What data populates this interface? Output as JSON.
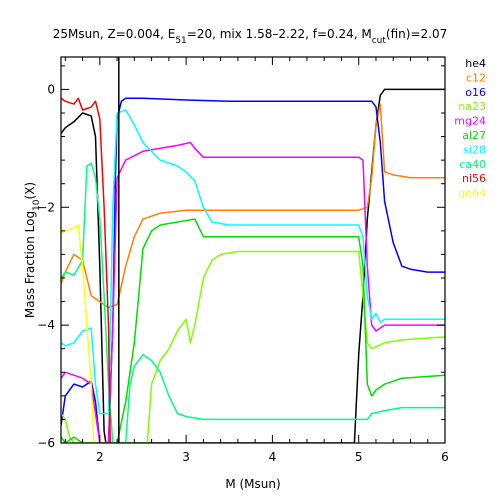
{
  "chart_data": {
    "type": "line",
    "title": {
      "prefix": "25Msun, Z=0.004, E",
      "e_sub": "51",
      "middle": "=20, mix 1.58–2.22, f=0.24, M",
      "m_sub": "cut",
      "suffix": "(fin)=2.07"
    },
    "xlabel": "M (Msun)",
    "ylabel": {
      "main": "Mass Fraction Log",
      "sub": "10",
      "suffix": "(X)"
    },
    "xlim": [
      1.55,
      6.0
    ],
    "ylim": [
      -6.0,
      0.55
    ],
    "x_ticks": [
      {
        "value": 2,
        "label": "2"
      },
      {
        "value": 3,
        "label": "3"
      },
      {
        "value": 4,
        "label": "4"
      },
      {
        "value": 5,
        "label": "5"
      },
      {
        "value": 6,
        "label": "6"
      }
    ],
    "y_ticks": [
      {
        "value": 0,
        "label": "0"
      },
      {
        "value": -2,
        "label": "−2"
      },
      {
        "value": -4,
        "label": "−4"
      },
      {
        "value": -6,
        "label": "−6"
      }
    ],
    "grid": false,
    "legend_position": "right",
    "mcut_marker_x": 2.22,
    "series": [
      {
        "name": "he4",
        "color": "#000000",
        "points": [
          [
            1.55,
            -0.75
          ],
          [
            1.6,
            -0.65
          ],
          [
            1.7,
            -0.55
          ],
          [
            1.8,
            -0.4
          ],
          [
            1.9,
            -0.45
          ],
          [
            1.95,
            -0.8
          ],
          [
            2.0,
            -3.0
          ],
          [
            2.05,
            -5.8
          ],
          [
            2.07,
            -6.0
          ],
          [
            4.95,
            -6.0
          ],
          [
            5.0,
            -4.5
          ],
          [
            5.05,
            -3.5
          ],
          [
            5.1,
            -2.2
          ],
          [
            5.15,
            -1.4
          ],
          [
            5.2,
            -0.6
          ],
          [
            5.25,
            -0.1
          ],
          [
            5.3,
            0.0
          ],
          [
            5.5,
            0.0
          ],
          [
            5.8,
            0.0
          ],
          [
            6.0,
            0.0
          ]
        ]
      },
      {
        "name": "c12",
        "color": "#ff8000",
        "points": [
          [
            1.55,
            -3.3
          ],
          [
            1.6,
            -3.1
          ],
          [
            1.7,
            -2.8
          ],
          [
            1.8,
            -2.9
          ],
          [
            1.9,
            -3.5
          ],
          [
            2.0,
            -3.6
          ],
          [
            2.1,
            -3.7
          ],
          [
            2.2,
            -3.65
          ],
          [
            2.3,
            -3.0
          ],
          [
            2.4,
            -2.5
          ],
          [
            2.5,
            -2.2
          ],
          [
            2.7,
            -2.1
          ],
          [
            3.0,
            -2.05
          ],
          [
            3.2,
            -2.05
          ],
          [
            3.5,
            -2.05
          ],
          [
            4.0,
            -2.05
          ],
          [
            4.5,
            -2.05
          ],
          [
            5.0,
            -2.05
          ],
          [
            5.1,
            -2.0
          ],
          [
            5.15,
            -1.5
          ],
          [
            5.2,
            -0.6
          ],
          [
            5.25,
            -0.25
          ],
          [
            5.3,
            -1.4
          ],
          [
            5.4,
            -1.45
          ],
          [
            5.6,
            -1.5
          ],
          [
            6.0,
            -1.5
          ]
        ]
      },
      {
        "name": "o16",
        "color": "#0000ff",
        "points": [
          [
            1.55,
            -5.7
          ],
          [
            1.6,
            -5.2
          ],
          [
            1.7,
            -5.0
          ],
          [
            1.8,
            -5.05
          ],
          [
            1.9,
            -4.95
          ],
          [
            1.95,
            -5.3
          ],
          [
            2.0,
            -6.0
          ],
          [
            2.1,
            -6.0
          ],
          [
            2.15,
            -4.0
          ],
          [
            2.18,
            -1.5
          ],
          [
            2.2,
            -0.5
          ],
          [
            2.25,
            -0.2
          ],
          [
            2.3,
            -0.15
          ],
          [
            2.5,
            -0.15
          ],
          [
            3.0,
            -0.18
          ],
          [
            3.5,
            -0.2
          ],
          [
            4.0,
            -0.2
          ],
          [
            4.5,
            -0.2
          ],
          [
            5.0,
            -0.2
          ],
          [
            5.15,
            -0.2
          ],
          [
            5.2,
            -0.3
          ],
          [
            5.25,
            -0.9
          ],
          [
            5.3,
            -1.9
          ],
          [
            5.4,
            -2.6
          ],
          [
            5.5,
            -3.0
          ],
          [
            5.6,
            -3.05
          ],
          [
            5.8,
            -3.1
          ],
          [
            6.0,
            -3.1
          ]
        ]
      },
      {
        "name": "na23",
        "color": "#80ff00",
        "points": [
          [
            1.55,
            -5.5
          ],
          [
            1.6,
            -5.6
          ],
          [
            1.65,
            -5.9
          ],
          [
            1.7,
            -6.0
          ],
          [
            2.55,
            -6.0
          ],
          [
            2.6,
            -5.0
          ],
          [
            2.7,
            -4.6
          ],
          [
            2.8,
            -4.4
          ],
          [
            2.9,
            -4.1
          ],
          [
            3.0,
            -3.9
          ],
          [
            3.05,
            -4.3
          ],
          [
            3.1,
            -4.0
          ],
          [
            3.2,
            -3.2
          ],
          [
            3.3,
            -2.9
          ],
          [
            3.4,
            -2.8
          ],
          [
            3.6,
            -2.75
          ],
          [
            4.0,
            -2.75
          ],
          [
            4.5,
            -2.75
          ],
          [
            5.0,
            -2.75
          ],
          [
            5.05,
            -3.5
          ],
          [
            5.1,
            -4.3
          ],
          [
            5.15,
            -4.4
          ],
          [
            5.3,
            -4.3
          ],
          [
            5.5,
            -4.25
          ],
          [
            6.0,
            -4.2
          ]
        ]
      },
      {
        "name": "mg24",
        "color": "#ff00ff",
        "points": [
          [
            1.55,
            -4.9
          ],
          [
            1.6,
            -4.8
          ],
          [
            1.7,
            -4.85
          ],
          [
            1.8,
            -4.9
          ],
          [
            1.9,
            -5.0
          ],
          [
            1.95,
            -5.5
          ],
          [
            2.0,
            -6.0
          ],
          [
            2.1,
            -6.0
          ],
          [
            2.15,
            -4.0
          ],
          [
            2.2,
            -1.5
          ],
          [
            2.3,
            -1.2
          ],
          [
            2.5,
            -1.05
          ],
          [
            2.7,
            -1.0
          ],
          [
            2.9,
            -0.95
          ],
          [
            3.05,
            -0.9
          ],
          [
            3.1,
            -1.0
          ],
          [
            3.2,
            -1.15
          ],
          [
            3.5,
            -1.15
          ],
          [
            4.0,
            -1.15
          ],
          [
            4.5,
            -1.15
          ],
          [
            5.0,
            -1.15
          ],
          [
            5.05,
            -1.2
          ],
          [
            5.1,
            -3.0
          ],
          [
            5.15,
            -4.0
          ],
          [
            5.2,
            -4.1
          ],
          [
            5.3,
            -4.0
          ],
          [
            5.5,
            -4.0
          ],
          [
            6.0,
            -4.0
          ]
        ]
      },
      {
        "name": "al27",
        "color": "#00e000",
        "points": [
          [
            1.55,
            -5.9
          ],
          [
            1.6,
            -6.0
          ],
          [
            1.7,
            -5.9
          ],
          [
            1.8,
            -6.0
          ],
          [
            2.2,
            -6.0
          ],
          [
            2.3,
            -5.3
          ],
          [
            2.4,
            -4.3
          ],
          [
            2.45,
            -3.5
          ],
          [
            2.5,
            -2.7
          ],
          [
            2.6,
            -2.4
          ],
          [
            2.7,
            -2.3
          ],
          [
            2.9,
            -2.25
          ],
          [
            3.1,
            -2.2
          ],
          [
            3.2,
            -2.5
          ],
          [
            3.5,
            -2.5
          ],
          [
            4.0,
            -2.5
          ],
          [
            4.5,
            -2.5
          ],
          [
            5.0,
            -2.5
          ],
          [
            5.05,
            -3.0
          ],
          [
            5.1,
            -5.0
          ],
          [
            5.15,
            -5.2
          ],
          [
            5.2,
            -5.1
          ],
          [
            5.3,
            -5.0
          ],
          [
            5.5,
            -4.9
          ],
          [
            6.0,
            -4.85
          ]
        ]
      },
      {
        "name": "si28",
        "color": "#00ffff",
        "points": [
          [
            1.55,
            -4.3
          ],
          [
            1.6,
            -4.35
          ],
          [
            1.7,
            -4.3
          ],
          [
            1.8,
            -4.1
          ],
          [
            1.9,
            -4.05
          ],
          [
            1.95,
            -5.0
          ],
          [
            2.0,
            -5.5
          ],
          [
            2.1,
            -5.5
          ],
          [
            2.15,
            -2.0
          ],
          [
            2.2,
            -0.4
          ],
          [
            2.3,
            -0.35
          ],
          [
            2.4,
            -0.6
          ],
          [
            2.5,
            -0.9
          ],
          [
            2.7,
            -1.2
          ],
          [
            2.9,
            -1.3
          ],
          [
            3.0,
            -1.4
          ],
          [
            3.1,
            -1.55
          ],
          [
            3.2,
            -2.0
          ],
          [
            3.3,
            -2.25
          ],
          [
            3.5,
            -2.3
          ],
          [
            4.0,
            -2.3
          ],
          [
            4.5,
            -2.3
          ],
          [
            5.0,
            -2.3
          ],
          [
            5.05,
            -2.5
          ],
          [
            5.1,
            -3.5
          ],
          [
            5.15,
            -3.9
          ],
          [
            5.2,
            -3.8
          ],
          [
            5.25,
            -3.95
          ],
          [
            5.3,
            -3.9
          ],
          [
            5.5,
            -3.9
          ],
          [
            6.0,
            -3.9
          ]
        ]
      },
      {
        "name": "ca40",
        "color": "#00ff80",
        "points": [
          [
            1.55,
            -3.2
          ],
          [
            1.6,
            -3.1
          ],
          [
            1.7,
            -3.15
          ],
          [
            1.8,
            -2.9
          ],
          [
            1.85,
            -1.3
          ],
          [
            1.9,
            -1.25
          ],
          [
            1.95,
            -1.5
          ],
          [
            2.0,
            -2.2
          ],
          [
            2.05,
            -3.5
          ],
          [
            2.1,
            -5.0
          ],
          [
            2.15,
            -6.0
          ],
          [
            2.3,
            -6.0
          ],
          [
            2.35,
            -5.0
          ],
          [
            2.4,
            -4.7
          ],
          [
            2.5,
            -4.5
          ],
          [
            2.6,
            -4.6
          ],
          [
            2.7,
            -4.8
          ],
          [
            2.8,
            -5.2
          ],
          [
            2.9,
            -5.5
          ],
          [
            3.0,
            -5.55
          ],
          [
            3.2,
            -5.6
          ],
          [
            3.5,
            -5.6
          ],
          [
            4.0,
            -5.6
          ],
          [
            4.5,
            -5.6
          ],
          [
            5.0,
            -5.6
          ],
          [
            5.1,
            -5.6
          ],
          [
            5.15,
            -5.5
          ],
          [
            5.3,
            -5.45
          ],
          [
            5.5,
            -5.4
          ],
          [
            6.0,
            -5.4
          ]
        ]
      },
      {
        "name": "ni56",
        "color": "#ff0000",
        "points": [
          [
            1.55,
            -0.15
          ],
          [
            1.6,
            -0.2
          ],
          [
            1.7,
            -0.25
          ],
          [
            1.75,
            -0.15
          ],
          [
            1.8,
            -0.35
          ],
          [
            1.9,
            -0.3
          ],
          [
            1.95,
            -0.2
          ],
          [
            2.0,
            -0.5
          ],
          [
            2.05,
            -2.0
          ],
          [
            2.1,
            -4.0
          ],
          [
            2.12,
            -6.0
          ]
        ]
      },
      {
        "name": "ge64",
        "color": "#ffff00",
        "points": [
          [
            1.55,
            -2.45
          ],
          [
            1.6,
            -2.4
          ],
          [
            1.7,
            -2.35
          ],
          [
            1.75,
            -2.3
          ],
          [
            1.8,
            -3.0
          ],
          [
            1.85,
            -4.0
          ],
          [
            1.9,
            -5.0
          ],
          [
            1.93,
            -6.0
          ]
        ]
      }
    ]
  }
}
